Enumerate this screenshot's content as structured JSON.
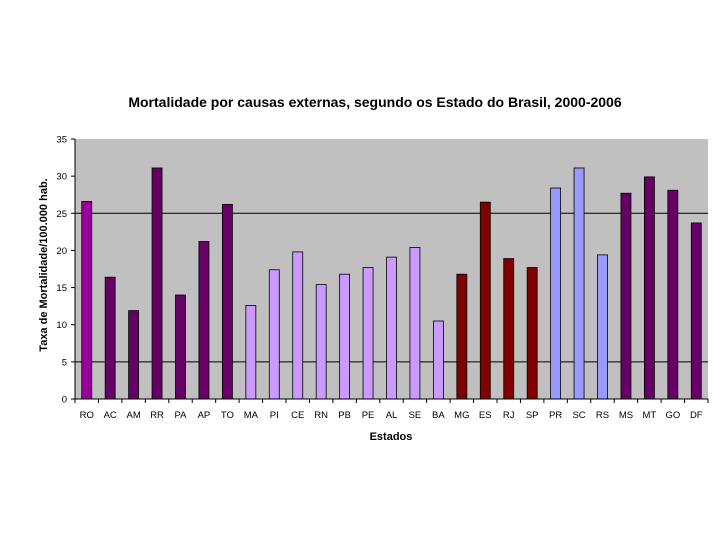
{
  "chart_data": {
    "type": "bar",
    "title": "Mortalidade por causas externas, segundo os Estado do Brasil, 2000-2006",
    "xlabel": "Estados",
    "ylabel": "Taxa de Mortalidade/100.000 hab.",
    "ylim": [
      0,
      35
    ],
    "yticks": [
      0,
      5,
      10,
      15,
      20,
      25,
      30,
      35
    ],
    "gridlines": [
      5,
      25
    ],
    "categories": [
      "RO",
      "AC",
      "AM",
      "RR",
      "PA",
      "AP",
      "TO",
      "MA",
      "PI",
      "CE",
      "RN",
      "PB",
      "PE",
      "AL",
      "SE",
      "BA",
      "MG",
      "ES",
      "RJ",
      "SP",
      "PR",
      "SC",
      "RS",
      "MS",
      "MT",
      "GO",
      "DF"
    ],
    "values": [
      26.6,
      16.4,
      11.9,
      31.1,
      14.0,
      21.2,
      26.2,
      12.6,
      17.4,
      19.8,
      15.4,
      16.8,
      17.7,
      19.1,
      20.4,
      10.5,
      16.8,
      26.5,
      18.9,
      17.7,
      28.4,
      31.1,
      19.4,
      27.7,
      29.9,
      28.1,
      23.7
    ],
    "colors": [
      "#990099",
      "#660066",
      "#660066",
      "#660066",
      "#660066",
      "#660066",
      "#660066",
      "#CC99FF",
      "#CC99FF",
      "#CC99FF",
      "#CC99FF",
      "#CC99FF",
      "#CC99FF",
      "#CC99FF",
      "#CC99FF",
      "#CC99FF",
      "#800000",
      "#800000",
      "#800000",
      "#800000",
      "#9999FF",
      "#9999FF",
      "#9999FF",
      "#660066",
      "#660066",
      "#660066",
      "#660066"
    ],
    "plot_background": "#C0C0C0"
  }
}
